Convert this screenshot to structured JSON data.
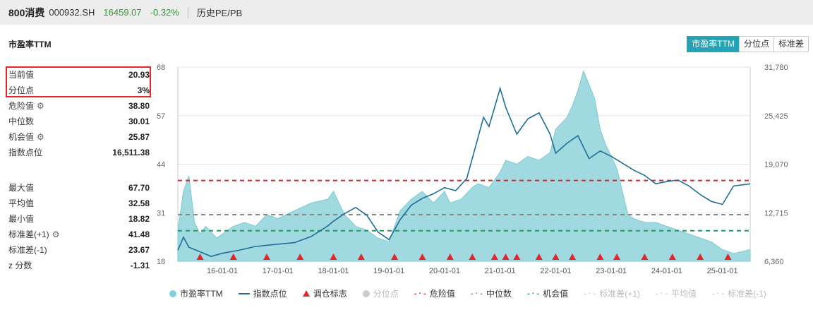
{
  "header": {
    "name": "800消费",
    "code": "000932.SH",
    "price": "16459.07",
    "change": "-0.32%",
    "link": "历史PE/PB"
  },
  "panel": {
    "title": "市盈率TTM",
    "tabs": [
      "市盈率TTM",
      "分位点",
      "标准差"
    ],
    "active_tab": "市盈率TTM"
  },
  "stats": {
    "current": {
      "label": "当前值",
      "value": "20.93"
    },
    "percentile": {
      "label": "分位点",
      "value": "3%"
    },
    "danger": {
      "label": "危险值",
      "value": "38.80"
    },
    "median": {
      "label": "中位数",
      "value": "30.01"
    },
    "opportunity": {
      "label": "机会值",
      "value": "25.87"
    },
    "index_point": {
      "label": "指数点位",
      "value": "16,511.38"
    },
    "max": {
      "label": "最大值",
      "value": "67.70"
    },
    "mean": {
      "label": "平均值",
      "value": "32.58"
    },
    "min": {
      "label": "最小值",
      "value": "18.82"
    },
    "std_plus": {
      "label": "标准差(+1)",
      "value": "41.48"
    },
    "std_minus": {
      "label": "标准差(-1)",
      "value": "23.67"
    },
    "zscore": {
      "label": "z 分数",
      "value": "-1.31"
    }
  },
  "legend": [
    {
      "label": "市盈率TTM",
      "symbol": "circle",
      "color": "#7fd0d8",
      "dim": false
    },
    {
      "label": "指数点位",
      "symbol": "line",
      "color": "#1f6e97",
      "dim": false
    },
    {
      "label": "调仓标志",
      "symbol": "triangle",
      "color": "#e4252c",
      "dim": false
    },
    {
      "label": "分位点",
      "symbol": "circle",
      "color": "#cccccc",
      "dim": true
    },
    {
      "label": "危险值",
      "symbol": "dash",
      "color": "#d9282e",
      "dim": false
    },
    {
      "label": "中位数",
      "symbol": "dash",
      "color": "#888888",
      "dim": false
    },
    {
      "label": "机会值",
      "symbol": "dash",
      "color": "#1f9a5a",
      "dim": false
    },
    {
      "label": "标准差(+1)",
      "symbol": "dash",
      "color": "#cccccc",
      "dim": true
    },
    {
      "label": "平均值",
      "symbol": "dash",
      "color": "#cccccc",
      "dim": true
    },
    {
      "label": "标准差(-1)",
      "symbol": "dash",
      "color": "#cccccc",
      "dim": true
    }
  ],
  "chart_data": {
    "type": "area",
    "x_ticks": [
      "16-01-01",
      "17-01-01",
      "18-01-01",
      "19-01-01",
      "20-01-01",
      "21-01-01",
      "22-01-01",
      "23-01-01",
      "24-01-01",
      "25-01-01"
    ],
    "y_left_ticks": [
      "68",
      "57",
      "44",
      "31",
      "18"
    ],
    "y_right_ticks": [
      "31,780",
      "25,425",
      "19,070",
      "12,715",
      "6,360"
    ],
    "ylim_left": [
      18,
      68
    ],
    "ylim_right": [
      6360,
      31780
    ],
    "x_range_years": [
      2015.2,
      2025.5
    ],
    "pe_series": {
      "name": "市盈率TTM",
      "x": [
        2015.2,
        2015.3,
        2015.4,
        2015.5,
        2015.6,
        2015.7,
        2015.9,
        2016.0,
        2016.2,
        2016.4,
        2016.6,
        2016.8,
        2017.0,
        2017.3,
        2017.6,
        2017.9,
        2018.0,
        2018.2,
        2018.4,
        2018.6,
        2018.8,
        2019.0,
        2019.2,
        2019.4,
        2019.6,
        2019.8,
        2020.0,
        2020.1,
        2020.3,
        2020.5,
        2020.6,
        2020.8,
        2021.0,
        2021.1,
        2021.3,
        2021.5,
        2021.7,
        2021.9,
        2022.0,
        2022.2,
        2022.3,
        2022.4,
        2022.5,
        2022.7,
        2022.8,
        2022.9,
        2023.1,
        2023.3,
        2023.4,
        2023.6,
        2023.8,
        2024.0,
        2024.2,
        2024.4,
        2024.6,
        2024.8,
        2025.0,
        2025.2,
        2025.5
      ],
      "y": [
        26,
        36,
        40,
        28,
        25,
        27,
        24,
        25,
        27,
        28,
        27,
        30,
        29,
        31,
        33,
        34,
        36,
        30,
        27,
        26,
        24,
        23,
        31,
        34,
        36,
        33,
        36,
        33,
        34,
        37,
        38,
        37,
        41,
        44,
        43,
        45,
        44,
        46,
        52,
        55,
        58,
        62,
        67,
        60,
        52,
        48,
        42,
        30,
        29,
        28,
        28,
        27,
        26,
        25,
        24,
        23,
        21,
        20,
        21
      ]
    },
    "index_series": {
      "name": "指数点位",
      "x": [
        2015.2,
        2015.3,
        2015.4,
        2015.6,
        2015.8,
        2016.0,
        2016.3,
        2016.6,
        2017.0,
        2017.3,
        2017.6,
        2017.9,
        2018.0,
        2018.2,
        2018.4,
        2018.6,
        2018.8,
        2019.0,
        2019.2,
        2019.4,
        2019.6,
        2019.8,
        2020.0,
        2020.2,
        2020.4,
        2020.6,
        2020.7,
        2020.8,
        2021.0,
        2021.1,
        2021.3,
        2021.5,
        2021.7,
        2021.9,
        2022.0,
        2022.2,
        2022.4,
        2022.6,
        2022.8,
        2023.0,
        2023.2,
        2023.4,
        2023.6,
        2023.8,
        2024.0,
        2024.2,
        2024.4,
        2024.6,
        2024.8,
        2025.0,
        2025.2,
        2025.5
      ],
      "y": [
        7800,
        9500,
        8200,
        7600,
        7000,
        7400,
        7800,
        8300,
        8600,
        8800,
        9600,
        11000,
        11600,
        12600,
        13400,
        12400,
        10200,
        9200,
        11800,
        13700,
        14600,
        15200,
        16000,
        15600,
        17200,
        22500,
        25200,
        24000,
        29000,
        26500,
        23000,
        25000,
        25800,
        23000,
        20500,
        21800,
        22800,
        19800,
        20800,
        20100,
        19200,
        18300,
        17600,
        16500,
        16800,
        17000,
        16200,
        15100,
        14200,
        13800,
        16200,
        16500
      ]
    },
    "danger_line": 38.8,
    "median_line": 30.01,
    "opportunity_line": 25.87,
    "rebalance_markers_x": [
      2015.6,
      2016.2,
      2016.8,
      2017.4,
      2018.0,
      2018.5,
      2019.1,
      2019.6,
      2020.1,
      2020.5,
      2020.9,
      2021.1,
      2021.3,
      2021.7,
      2022.0,
      2022.3,
      2022.8,
      2023.1,
      2023.6,
      2024.1,
      2024.6,
      2025.1
    ]
  }
}
